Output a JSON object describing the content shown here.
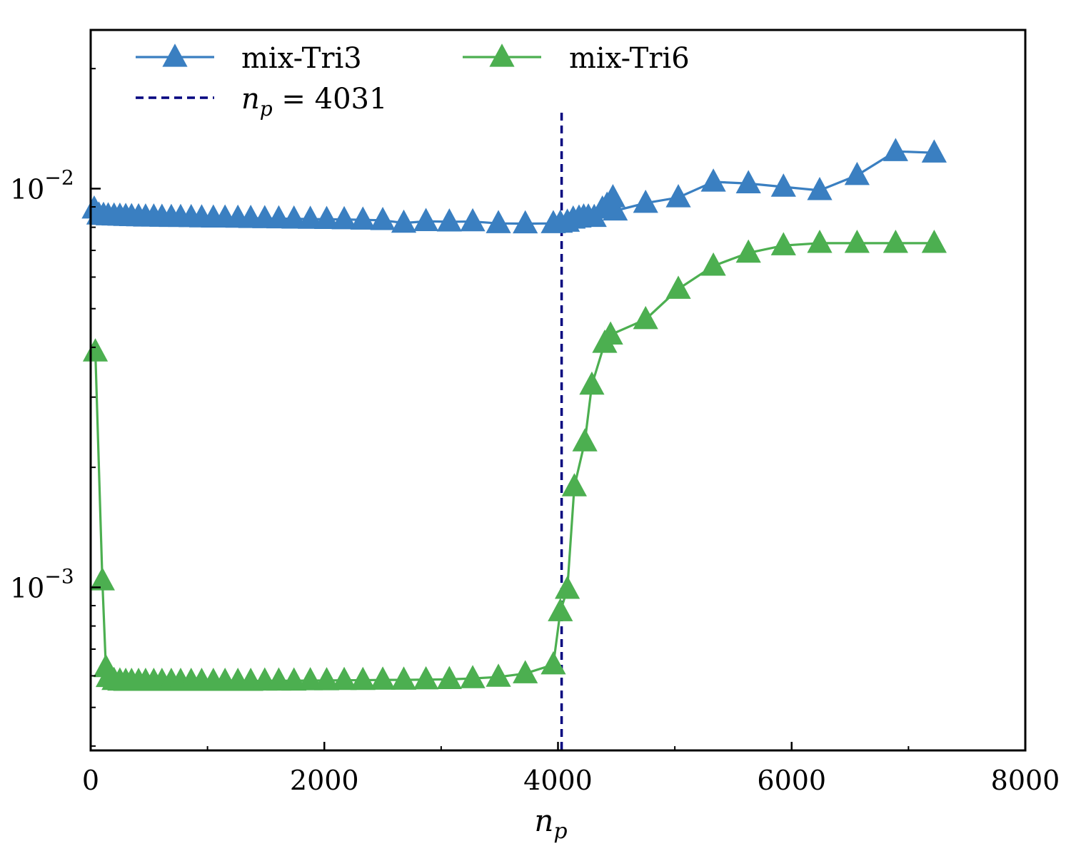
{
  "chart_data": {
    "type": "line",
    "xlabel": "n",
    "xlabel_sub": "p",
    "xlim": [
      0,
      8000
    ],
    "ylim": [
      0.00039,
      0.025
    ],
    "yscale": "log",
    "x_ticks": [
      {
        "value": 0,
        "label": "0"
      },
      {
        "value": 2000,
        "label": "2000"
      },
      {
        "value": 4000,
        "label": "4000"
      },
      {
        "value": 6000,
        "label": "6000"
      },
      {
        "value": 8000,
        "label": "8000"
      }
    ],
    "y_ticks": [
      {
        "value": 0.001,
        "base": "10",
        "exp": "−3"
      },
      {
        "value": 0.01,
        "base": "10",
        "exp": "−2"
      }
    ],
    "grid": false,
    "legend_position": "top",
    "vline": {
      "x": 4031,
      "label_var": "n",
      "label_sub": "p",
      "label_rest": " = 4031",
      "color": "#00007f",
      "ymax": 0.0155
    },
    "series": [
      {
        "name": "mix-Tri3",
        "color": "#3a7fc1",
        "marker": "triangle",
        "x": [
          30,
          70,
          110,
          150,
          200,
          250,
          300,
          350,
          410,
          470,
          540,
          610,
          690,
          770,
          860,
          950,
          1050,
          1150,
          1260,
          1370,
          1490,
          1610,
          1740,
          1880,
          2020,
          2170,
          2330,
          2500,
          2680,
          2870,
          3070,
          3270,
          3490,
          3720,
          3960,
          4020,
          4080,
          4130,
          4180,
          4220,
          4260,
          4310,
          4380,
          4420,
          4470,
          4490,
          4750,
          5030,
          5330,
          5630,
          5930,
          6240,
          6560,
          6890,
          7220
        ],
        "y": [
          0.0089,
          0.0086,
          0.00858,
          0.00856,
          0.00855,
          0.00854,
          0.00853,
          0.00852,
          0.00851,
          0.0085,
          0.0085,
          0.00849,
          0.00848,
          0.00848,
          0.00847,
          0.00846,
          0.00845,
          0.00845,
          0.00844,
          0.00843,
          0.00842,
          0.00841,
          0.0084,
          0.00839,
          0.00838,
          0.00837,
          0.00835,
          0.00833,
          0.0082,
          0.00828,
          0.00826,
          0.00827,
          0.00818,
          0.00817,
          0.00818,
          0.0082,
          0.00825,
          0.0084,
          0.00845,
          0.0085,
          0.0085,
          0.00848,
          0.0089,
          0.0091,
          0.0095,
          0.0088,
          0.0092,
          0.0095,
          0.0104,
          0.0103,
          0.0101,
          0.0099,
          0.0108,
          0.0124,
          0.0123
        ]
      },
      {
        "name": "mix-Tri6",
        "color": "#4caf50",
        "marker": "triangle",
        "x": [
          40,
          100,
          130,
          150,
          200,
          250,
          300,
          350,
          410,
          470,
          540,
          610,
          690,
          770,
          860,
          950,
          1050,
          1150,
          1260,
          1370,
          1490,
          1610,
          1740,
          1880,
          2020,
          2170,
          2330,
          2500,
          2680,
          2870,
          3070,
          3270,
          3490,
          3720,
          3960,
          4020,
          4080,
          4140,
          4230,
          4290,
          4400,
          4450,
          4750,
          5030,
          5330,
          5630,
          5930,
          6240,
          6560,
          6890,
          7220
        ],
        "y": [
          0.0039,
          0.00104,
          0.00063,
          0.000595,
          0.000585,
          0.000583,
          0.000582,
          0.000582,
          0.000582,
          0.000582,
          0.000582,
          0.000582,
          0.000582,
          0.000582,
          0.000582,
          0.000582,
          0.000582,
          0.000582,
          0.000582,
          0.000582,
          0.000583,
          0.000583,
          0.000583,
          0.000584,
          0.000584,
          0.000585,
          0.000585,
          0.000586,
          0.000586,
          0.000587,
          0.000588,
          0.000591,
          0.000596,
          0.000608,
          0.00064,
          0.00087,
          0.00099,
          0.00179,
          0.00232,
          0.00322,
          0.0041,
          0.0043,
          0.0047,
          0.0056,
          0.0064,
          0.0069,
          0.0072,
          0.0073,
          0.0073,
          0.0073,
          0.0073
        ]
      }
    ]
  }
}
